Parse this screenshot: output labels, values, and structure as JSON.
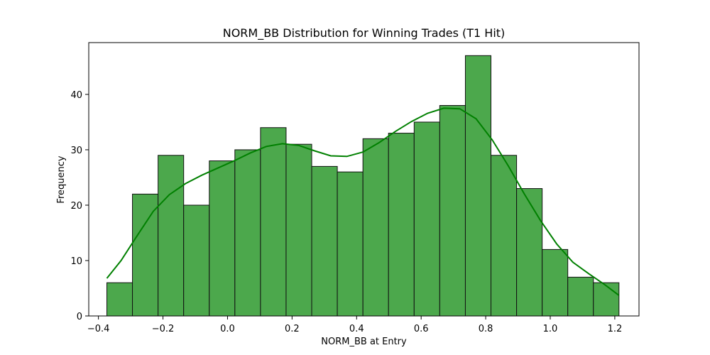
{
  "chart_data": {
    "type": "bar",
    "title": "NORM_BB Distribution for Winning Trades (T1 Hit)",
    "xlabel": "NORM_BB at Entry",
    "ylabel": "Frequency",
    "xlim": [
      -0.43,
      1.275
    ],
    "ylim": [
      0,
      49.35
    ],
    "xticks": [
      -0.4,
      -0.2,
      0.0,
      0.2,
      0.4,
      0.6,
      0.8,
      1.0,
      1.2
    ],
    "xtick_labels": [
      "−0.4",
      "−0.2",
      "0.0",
      "0.2",
      "0.4",
      "0.6",
      "0.8",
      "1.0",
      "1.2"
    ],
    "yticks": [
      0,
      10,
      20,
      30,
      40
    ],
    "ytick_labels": [
      "0",
      "10",
      "20",
      "30",
      "40"
    ],
    "grid": false,
    "bar_color": "#4ca84c",
    "bar_edge_color": "#111111",
    "kde_color": "#008000",
    "bins": [
      {
        "x0": -0.3739,
        "x1": -0.2946,
        "value": 6
      },
      {
        "x0": -0.2946,
        "x1": -0.2152,
        "value": 22
      },
      {
        "x0": -0.2152,
        "x1": -0.1359,
        "value": 29
      },
      {
        "x0": -0.1359,
        "x1": -0.0565,
        "value": 20
      },
      {
        "x0": -0.0565,
        "x1": 0.0228,
        "value": 28
      },
      {
        "x0": 0.0228,
        "x1": 0.1022,
        "value": 30
      },
      {
        "x0": 0.1022,
        "x1": 0.1815,
        "value": 34
      },
      {
        "x0": 0.1815,
        "x1": 0.2609,
        "value": 31
      },
      {
        "x0": 0.2609,
        "x1": 0.3402,
        "value": 27
      },
      {
        "x0": 0.3402,
        "x1": 0.4196,
        "value": 26
      },
      {
        "x0": 0.4196,
        "x1": 0.4989,
        "value": 32
      },
      {
        "x0": 0.4989,
        "x1": 0.5783,
        "value": 33
      },
      {
        "x0": 0.5783,
        "x1": 0.6576,
        "value": 35
      },
      {
        "x0": 0.6576,
        "x1": 0.737,
        "value": 38
      },
      {
        "x0": 0.737,
        "x1": 0.8163,
        "value": 47
      },
      {
        "x0": 0.8163,
        "x1": 0.8957,
        "value": 29
      },
      {
        "x0": 0.8957,
        "x1": 0.975,
        "value": 23
      },
      {
        "x0": 0.975,
        "x1": 1.0543,
        "value": 12
      },
      {
        "x0": 1.0543,
        "x1": 1.1337,
        "value": 7
      },
      {
        "x0": 1.1337,
        "x1": 1.213,
        "value": 6
      }
    ],
    "kde": [
      [
        -0.374,
        6.8
      ],
      [
        -0.33,
        10.0
      ],
      [
        -0.28,
        14.5
      ],
      [
        -0.23,
        18.9
      ],
      [
        -0.18,
        21.9
      ],
      [
        -0.13,
        23.9
      ],
      [
        -0.08,
        25.4
      ],
      [
        -0.03,
        26.7
      ],
      [
        0.02,
        28.0
      ],
      [
        0.07,
        29.4
      ],
      [
        0.12,
        30.6
      ],
      [
        0.17,
        31.1
      ],
      [
        0.22,
        30.8
      ],
      [
        0.27,
        29.8
      ],
      [
        0.32,
        28.9
      ],
      [
        0.37,
        28.8
      ],
      [
        0.42,
        29.6
      ],
      [
        0.47,
        31.3
      ],
      [
        0.52,
        33.3
      ],
      [
        0.57,
        35.1
      ],
      [
        0.62,
        36.6
      ],
      [
        0.67,
        37.5
      ],
      [
        0.72,
        37.4
      ],
      [
        0.77,
        35.6
      ],
      [
        0.82,
        31.8
      ],
      [
        0.87,
        27.1
      ],
      [
        0.92,
        22.0
      ],
      [
        0.97,
        17.2
      ],
      [
        1.02,
        13.0
      ],
      [
        1.07,
        9.7
      ],
      [
        1.12,
        7.6
      ],
      [
        1.17,
        5.6
      ],
      [
        1.213,
        3.7
      ]
    ]
  }
}
